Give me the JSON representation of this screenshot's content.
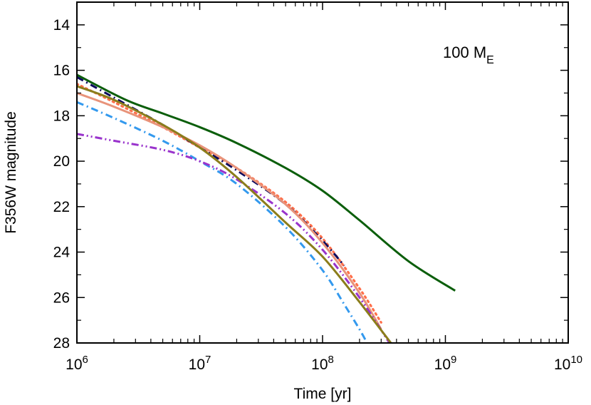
{
  "chart_data": {
    "type": "line",
    "xlabel": "Time [yr]",
    "ylabel": "F356W magnitude",
    "x_scale": "log",
    "xlim": [
      1000000,
      10000000000
    ],
    "ylim": [
      28,
      13
    ],
    "y_inverted": true,
    "x_ticks": [
      {
        "value": 1000000,
        "base": "10",
        "exp": "6"
      },
      {
        "value": 10000000,
        "base": "10",
        "exp": "7"
      },
      {
        "value": 100000000,
        "base": "10",
        "exp": "8"
      },
      {
        "value": 1000000000,
        "base": "10",
        "exp": "9"
      },
      {
        "value": 10000000000,
        "base": "10",
        "exp": "10"
      }
    ],
    "y_ticks": [
      14,
      16,
      18,
      20,
      22,
      24,
      26,
      28
    ],
    "grid": false,
    "annotation": {
      "main": "100 M",
      "sub": "E"
    },
    "series": [
      {
        "color": "#0b5e0b",
        "style": "solid",
        "x": [
          1000000,
          2500000,
          5000000,
          10000000,
          20000000,
          50000000,
          100000000,
          200000000,
          500000000,
          1200000000
        ],
        "y": [
          16.2,
          17.3,
          17.9,
          18.5,
          19.2,
          20.3,
          21.3,
          22.6,
          24.4,
          25.7
        ]
      },
      {
        "color": "#ff6f4a",
        "style": "dotted",
        "x": [
          1000000,
          2000000,
          5000000,
          10000000,
          20000000,
          50000000,
          100000000,
          200000000,
          300000000
        ],
        "y": [
          16.6,
          17.4,
          18.5,
          19.4,
          20.3,
          21.8,
          23.4,
          25.6,
          27.1
        ]
      },
      {
        "color": "#0d0b5e",
        "style": "dashdot",
        "x": [
          1000000,
          2000000,
          5000000,
          10000000,
          20000000,
          50000000,
          100000000,
          150000000
        ],
        "y": [
          16.3,
          17.2,
          18.4,
          19.4,
          20.4,
          21.9,
          23.5,
          24.6
        ]
      },
      {
        "color": "#e8937a",
        "style": "solid",
        "x": [
          1000000,
          2000000,
          5000000,
          10000000,
          20000000,
          50000000,
          100000000,
          200000000,
          300000000
        ],
        "y": [
          17.0,
          17.6,
          18.5,
          19.3,
          20.3,
          21.9,
          23.6,
          25.8,
          27.4
        ]
      },
      {
        "color": "#3399ee",
        "style": "dashdot",
        "x": [
          1000000,
          2000000,
          5000000,
          10000000,
          20000000,
          50000000,
          100000000,
          150000000,
          200000000,
          230000000
        ],
        "y": [
          17.4,
          18.1,
          19.1,
          20.0,
          21.0,
          22.9,
          24.8,
          26.3,
          27.4,
          28.0
        ]
      },
      {
        "color": "#9933cc",
        "style": "dashdotdot",
        "x": [
          1000000,
          2000000,
          5000000,
          10000000,
          20000000,
          50000000,
          100000000,
          200000000,
          350000000
        ],
        "y": [
          18.8,
          19.1,
          19.5,
          20.0,
          20.8,
          22.3,
          23.9,
          26.0,
          28.0
        ]
      },
      {
        "color": "#8b7d1b",
        "style": "solid",
        "x": [
          1000000,
          2000000,
          5000000,
          10000000,
          20000000,
          50000000,
          100000000,
          200000000,
          360000000
        ],
        "y": [
          16.7,
          17.3,
          18.4,
          19.4,
          20.7,
          22.7,
          24.2,
          26.2,
          28.0
        ]
      }
    ]
  }
}
